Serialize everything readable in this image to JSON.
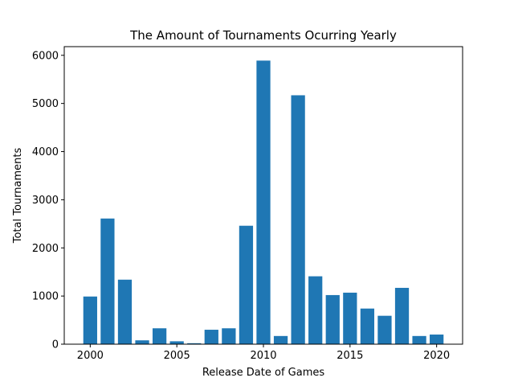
{
  "chart_data": {
    "type": "bar",
    "title": "The Amount of Tournaments Ocurring Yearly",
    "xlabel": "Release Date of Games",
    "ylabel": "Total Tournaments",
    "x": [
      2000,
      2001,
      2002,
      2003,
      2004,
      2005,
      2006,
      2007,
      2008,
      2009,
      2010,
      2011,
      2012,
      2013,
      2014,
      2015,
      2016,
      2017,
      2018,
      2019,
      2020
    ],
    "values": [
      990,
      2610,
      1340,
      80,
      330,
      60,
      20,
      300,
      330,
      2460,
      5890,
      170,
      5170,
      1410,
      1020,
      1070,
      740,
      590,
      1170,
      170,
      200
    ],
    "xlim": [
      1998.5,
      2021.5
    ],
    "ylim": [
      0,
      6180
    ],
    "xticks": [
      2000,
      2005,
      2010,
      2015,
      2020
    ],
    "yticks": [
      0,
      1000,
      2000,
      3000,
      4000,
      5000,
      6000
    ],
    "bar_color": "#1f77b4",
    "grid": false,
    "legend": "none"
  }
}
